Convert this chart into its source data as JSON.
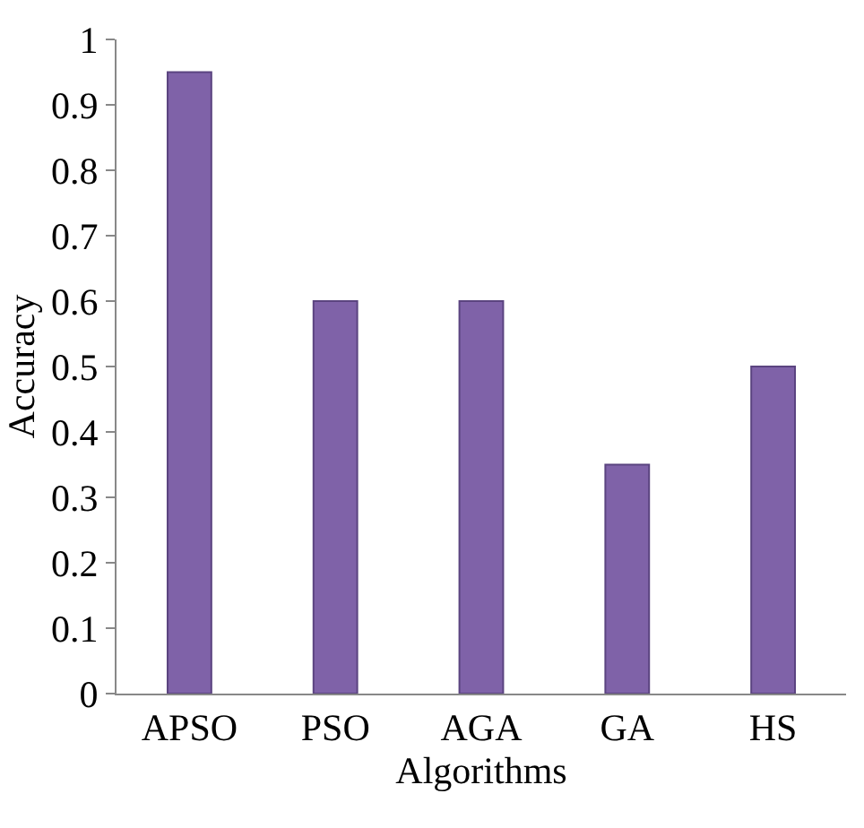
{
  "chart_data": {
    "type": "bar",
    "xlabel": "Algorithms",
    "ylabel": "Accuracy",
    "categories": [
      "APSO",
      "PSO",
      "AGA",
      "GA",
      "HS"
    ],
    "values": [
      0.95,
      0.6,
      0.6,
      0.35,
      0.5
    ],
    "color": "#7f62a8",
    "ylim": [
      0,
      1
    ],
    "yticks": [
      0,
      0.1,
      0.2,
      0.3,
      0.4,
      0.5,
      0.6,
      0.7,
      0.8,
      0.9,
      1
    ]
  }
}
